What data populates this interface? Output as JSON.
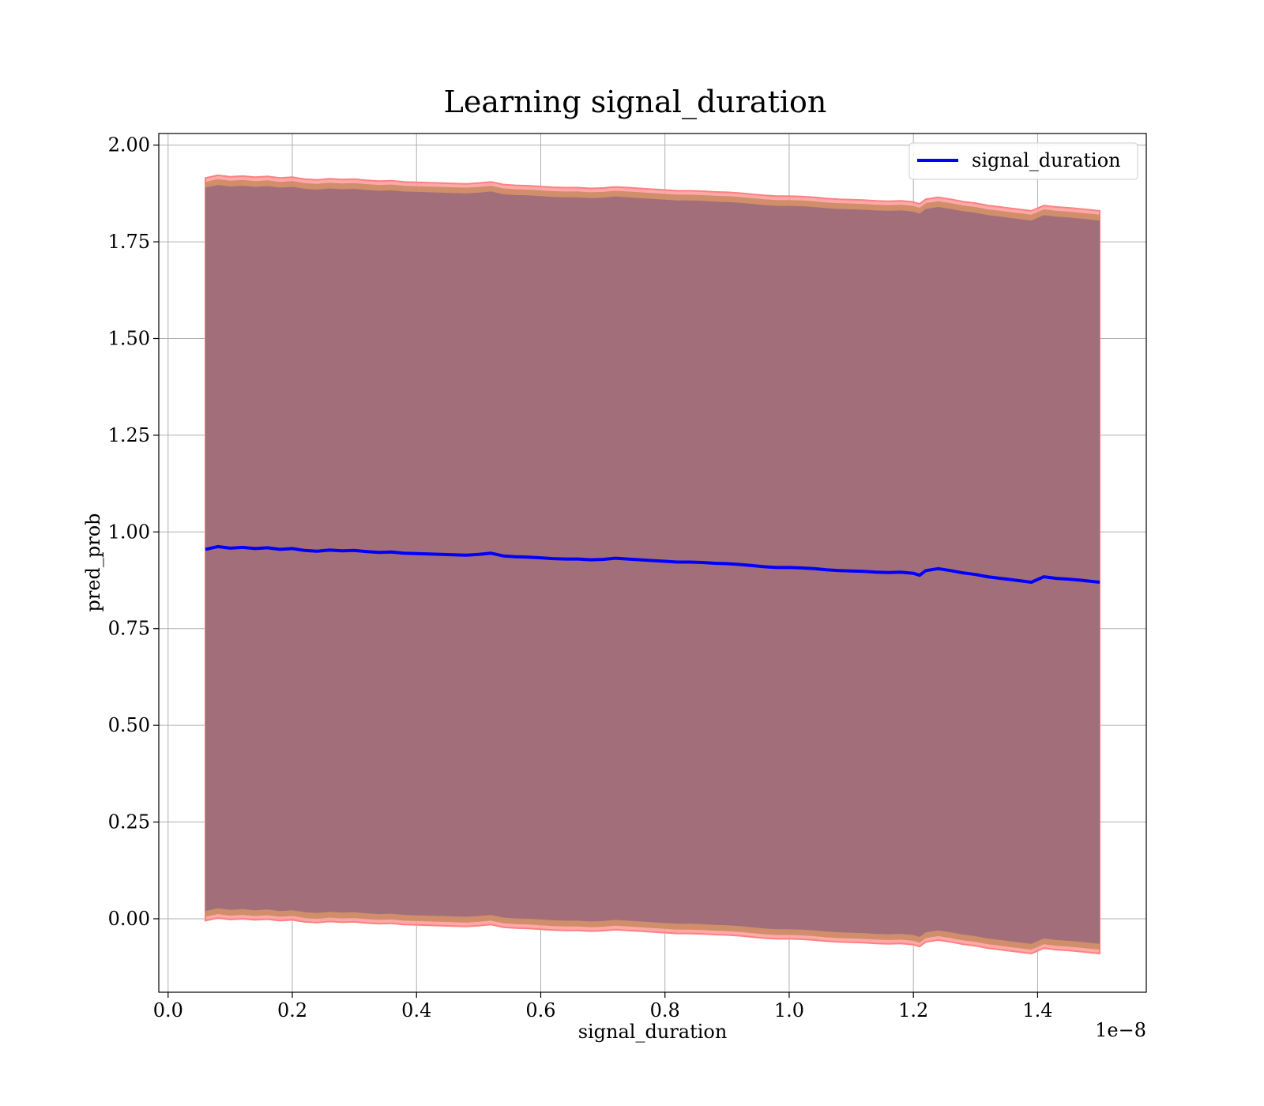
{
  "chart_data": {
    "type": "line",
    "title": "Learning signal_duration",
    "xlabel": "signal_duration",
    "ylabel": "pred_prob",
    "x_scale_label": "1e−8",
    "x_scale_factor": 1e-08,
    "xlim": [
      -0.015,
      1.575
    ],
    "ylim": [
      -0.19,
      2.03
    ],
    "x_ticks": [
      0.0,
      0.2,
      0.4,
      0.6,
      0.8,
      1.0,
      1.2,
      1.4
    ],
    "x_tick_labels": [
      "0.0",
      "0.2",
      "0.4",
      "0.6",
      "0.8",
      "1.0",
      "1.2",
      "1.4"
    ],
    "y_ticks": [
      0.0,
      0.25,
      0.5,
      0.75,
      1.0,
      1.25,
      1.5,
      1.75,
      2.0
    ],
    "y_tick_labels": [
      "0.00",
      "0.25",
      "0.50",
      "0.75",
      "1.00",
      "1.25",
      "1.50",
      "1.75",
      "2.00"
    ],
    "grid": true,
    "legend_position": "top-right",
    "series": [
      {
        "name": "signal_duration",
        "color": "#0000ff",
        "x": [
          0.06,
          0.08,
          0.1,
          0.12,
          0.14,
          0.16,
          0.18,
          0.2,
          0.22,
          0.24,
          0.26,
          0.28,
          0.3,
          0.32,
          0.34,
          0.36,
          0.38,
          0.4,
          0.42,
          0.44,
          0.46,
          0.48,
          0.5,
          0.52,
          0.54,
          0.56,
          0.58,
          0.6,
          0.62,
          0.64,
          0.66,
          0.68,
          0.7,
          0.72,
          0.74,
          0.76,
          0.78,
          0.8,
          0.82,
          0.84,
          0.86,
          0.88,
          0.9,
          0.92,
          0.94,
          0.96,
          0.98,
          1.0,
          1.02,
          1.04,
          1.06,
          1.08,
          1.1,
          1.12,
          1.14,
          1.16,
          1.18,
          1.2,
          1.21,
          1.22,
          1.24,
          1.26,
          1.28,
          1.3,
          1.32,
          1.34,
          1.36,
          1.39,
          1.41,
          1.43,
          1.45,
          1.47,
          1.5
        ],
        "values": [
          0.955,
          0.962,
          0.958,
          0.96,
          0.957,
          0.959,
          0.955,
          0.957,
          0.952,
          0.95,
          0.953,
          0.951,
          0.952,
          0.949,
          0.947,
          0.948,
          0.945,
          0.944,
          0.943,
          0.942,
          0.941,
          0.94,
          0.942,
          0.945,
          0.938,
          0.936,
          0.935,
          0.933,
          0.931,
          0.93,
          0.93,
          0.928,
          0.929,
          0.932,
          0.93,
          0.928,
          0.926,
          0.924,
          0.922,
          0.922,
          0.921,
          0.919,
          0.918,
          0.916,
          0.913,
          0.91,
          0.908,
          0.908,
          0.907,
          0.905,
          0.902,
          0.9,
          0.899,
          0.898,
          0.896,
          0.895,
          0.896,
          0.893,
          0.888,
          0.9,
          0.905,
          0.9,
          0.894,
          0.89,
          0.884,
          0.88,
          0.876,
          0.87,
          0.884,
          0.88,
          0.878,
          0.875,
          0.87
        ]
      }
    ],
    "bands": [
      {
        "color": "#ff9999",
        "upper_offset": 0.96,
        "lower_offset": 0.96
      },
      {
        "color": "#c98a60",
        "upper_offset": 0.95,
        "lower_offset": 0.95
      },
      {
        "color": "#9c6a7b",
        "upper_offset": 0.935,
        "lower_offset": 0.935
      }
    ]
  }
}
